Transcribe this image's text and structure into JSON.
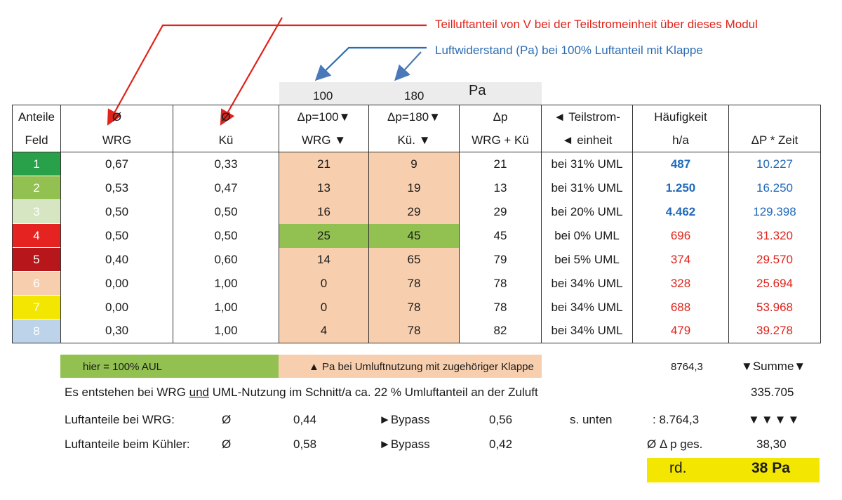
{
  "annotations": {
    "red": "Teilluftanteil von V bei der Teilstromeinheit über dieses Modul",
    "blue": "Luftwiderstand (Pa) bei 100% Luftanteil mit Klappe"
  },
  "pa_header": {
    "v1": "100",
    "v2": "180",
    "unit": "Pa"
  },
  "header1": [
    "Anteile",
    "Ø",
    "Ø",
    "Δp=100▼",
    "Δp=180▼",
    "Δp",
    "◄ Teilstrom-",
    "Häufigkeit",
    ""
  ],
  "header2": [
    "Feld",
    "WRG",
    "Kü",
    "WRG ▼",
    "Kü. ▼",
    "WRG + Kü",
    "◄ einheit",
    "h/a",
    "ΔP * Zeit"
  ],
  "rows": [
    {
      "feld": "1",
      "color": "#28a14a",
      "wrg": "0,67",
      "ku": "0,33",
      "p100": "21",
      "p180": "9",
      "dp": "21",
      "teil": "bei 31% UML",
      "h": "487",
      "dpz": "10.227"
    },
    {
      "feld": "2",
      "color": "#93c151",
      "wrg": "0,53",
      "ku": "0,47",
      "p100": "13",
      "p180": "19",
      "dp": "13",
      "teil": "bei 31% UML",
      "h": "1.250",
      "dpz": "16.250"
    },
    {
      "feld": "3",
      "color": "#d7e6c2",
      "wrg": "0,50",
      "ku": "0,50",
      "p100": "16",
      "p180": "29",
      "dp": "29",
      "teil": "bei 20% UML",
      "h": "4.462",
      "dpz": "129.398"
    },
    {
      "feld": "4",
      "color": "#e52421",
      "wrg": "0,50",
      "ku": "0,50",
      "p100": "25",
      "p180": "45",
      "dp": "45",
      "teil": "bei 0% UML",
      "h": "696",
      "dpz": "31.320"
    },
    {
      "feld": "5",
      "color": "#b7161a",
      "wrg": "0,40",
      "ku": "0,60",
      "p100": "14",
      "p180": "65",
      "dp": "79",
      "teil": "bei 5% UML",
      "h": "374",
      "dpz": "29.570"
    },
    {
      "feld": "6",
      "color": "#f8cfae",
      "wrg": "0,00",
      "ku": "1,00",
      "p100": "0",
      "p180": "78",
      "dp": "78",
      "teil": "bei 34% UML",
      "h": "328",
      "dpz": "25.694"
    },
    {
      "feld": "7",
      "color": "#f3e600",
      "wrg": "0,00",
      "ku": "1,00",
      "p100": "0",
      "p180": "78",
      "dp": "78",
      "teil": "bei 34% UML",
      "h": "688",
      "dpz": "53.968"
    },
    {
      "feld": "8",
      "color": "#bcd3ea",
      "wrg": "0,30",
      "ku": "1,00",
      "p100": "4",
      "p180": "78",
      "dp": "82",
      "teil": "bei 34% UML",
      "h": "479",
      "dpz": "39.278"
    }
  ],
  "bars": {
    "green": "hier = 100% AUL",
    "peach": "▲ Pa bei Umluftnutzung mit zugehöriger Klappe",
    "sum_hours": "8764,3",
    "sum_label": "▼Summe▼"
  },
  "footer": {
    "line1_a": "Es entstehen bei WRG ",
    "line1_und": "und",
    "line1_b": " UML-Nutzung im Schnitt/a ca. 22 % Umluftanteil an der Zuluft",
    "line1_value": "335.705",
    "wrg_label": "Luftanteile bei WRG:",
    "wrg_phi": "Ø",
    "wrg_val": "0,44",
    "bypass": "►Bypass",
    "wrg_bypass_val": "0,56",
    "s_unten": "s. unten",
    "div": ": 8.764,3",
    "arrows": "▼▼▼▼",
    "ku_label": "Luftanteile beim Kühler:",
    "ku_phi": "Ø",
    "ku_val": "0,58",
    "ku_bypass_val": "0,42",
    "avg_label": "Ø Δ p ges.",
    "avg_val": "38,30",
    "rd": "rd.",
    "result": "38 Pa"
  }
}
